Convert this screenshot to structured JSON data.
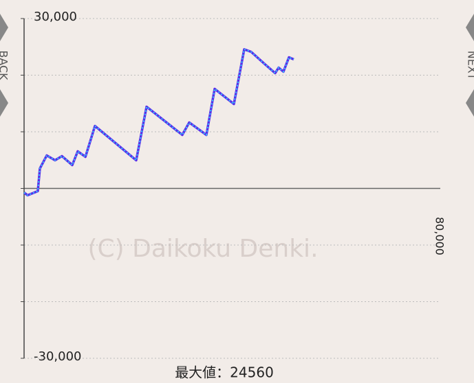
{
  "chart_data": {
    "type": "line",
    "nav": {
      "back": "BACK",
      "next": "NEXT"
    },
    "watermark": "(C) Daikoku Denki.",
    "caption": "最大値：24560",
    "x": [
      0,
      660,
      2640,
      3040,
      4360,
      5950,
      7270,
      9260,
      10310,
      11790,
      13620,
      21550,
      23540,
      30410,
      31740,
      35040,
      36630,
      40330,
      42310,
      43640,
      46280,
      48260,
      48930,
      49850,
      50910,
      51840
    ],
    "series": [
      {
        "color": "#5a2ee8",
        "dash_color": "#33ccff",
        "values": [
          -730,
          -1210,
          -480,
          3520,
          5820,
          4970,
          5700,
          4120,
          6550,
          5580,
          11030,
          4970,
          14420,
          9450,
          11640,
          9450,
          17580,
          14910,
          24560,
          24120,
          21940,
          20360,
          21330,
          20610,
          23150,
          22790
        ]
      }
    ],
    "xlim": [
      0,
      80000
    ],
    "xticks": [
      {
        "value": 80000,
        "label": "80,000"
      }
    ],
    "ylim": [
      -30000,
      30000
    ],
    "yticks": [
      {
        "value": 30000,
        "label": "30,000"
      },
      {
        "value": -30000,
        "label": "-30,000"
      }
    ],
    "minor_yticks": [
      -20000,
      -10000,
      0,
      10000,
      20000
    ],
    "grid": true
  }
}
